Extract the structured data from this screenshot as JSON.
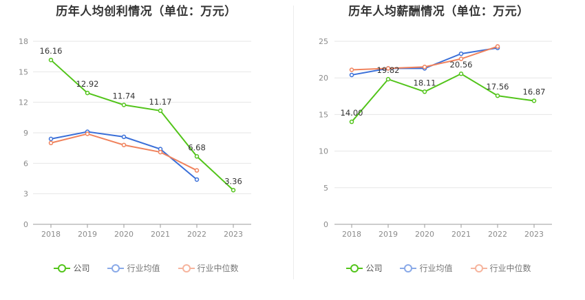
{
  "colors": {
    "company": "#52c41a",
    "industry_avg": "#3a6fd8",
    "industry_median": "#f0825c"
  },
  "chart_data": [
    {
      "type": "line",
      "title": "历年人均创利情况（单位：万元）",
      "categories": [
        "2018",
        "2019",
        "2020",
        "2021",
        "2022",
        "2023"
      ],
      "ylim": [
        0,
        18
      ],
      "yticks": [
        0,
        3,
        6,
        9,
        12,
        15,
        18
      ],
      "grid": true,
      "legend_position": "bottom",
      "series": [
        {
          "name": "公司",
          "key": "company",
          "values": [
            16.16,
            12.92,
            11.74,
            11.17,
            6.68,
            3.36
          ],
          "labels": [
            "16.16",
            "12.92",
            "11.74",
            "11.17",
            "6.68",
            "3.36"
          ]
        },
        {
          "name": "行业均值",
          "key": "industry_avg",
          "values": [
            8.4,
            9.1,
            8.6,
            7.4,
            4.4,
            null
          ]
        },
        {
          "name": "行业中位数",
          "key": "industry_median",
          "values": [
            8.0,
            8.9,
            7.8,
            7.1,
            5.3,
            null
          ]
        }
      ]
    },
    {
      "type": "line",
      "title": "历年人均薪酬情况（单位：万元）",
      "categories": [
        "2018",
        "2019",
        "2020",
        "2021",
        "2022",
        "2023"
      ],
      "ylim": [
        0,
        25
      ],
      "yticks": [
        0,
        5,
        10,
        15,
        20,
        25
      ],
      "grid": true,
      "legend_position": "bottom",
      "series": [
        {
          "name": "公司",
          "key": "company",
          "values": [
            14.0,
            19.82,
            18.11,
            20.56,
            17.56,
            16.87
          ],
          "labels": [
            "14.00",
            "19.82",
            "18.11",
            "20.56",
            "17.56",
            "16.87"
          ]
        },
        {
          "name": "行业均值",
          "key": "industry_avg",
          "values": [
            20.4,
            21.3,
            21.3,
            23.3,
            24.1,
            null
          ]
        },
        {
          "name": "行业中位数",
          "key": "industry_median",
          "values": [
            21.1,
            21.3,
            21.5,
            22.6,
            24.3,
            null
          ]
        }
      ]
    }
  ]
}
